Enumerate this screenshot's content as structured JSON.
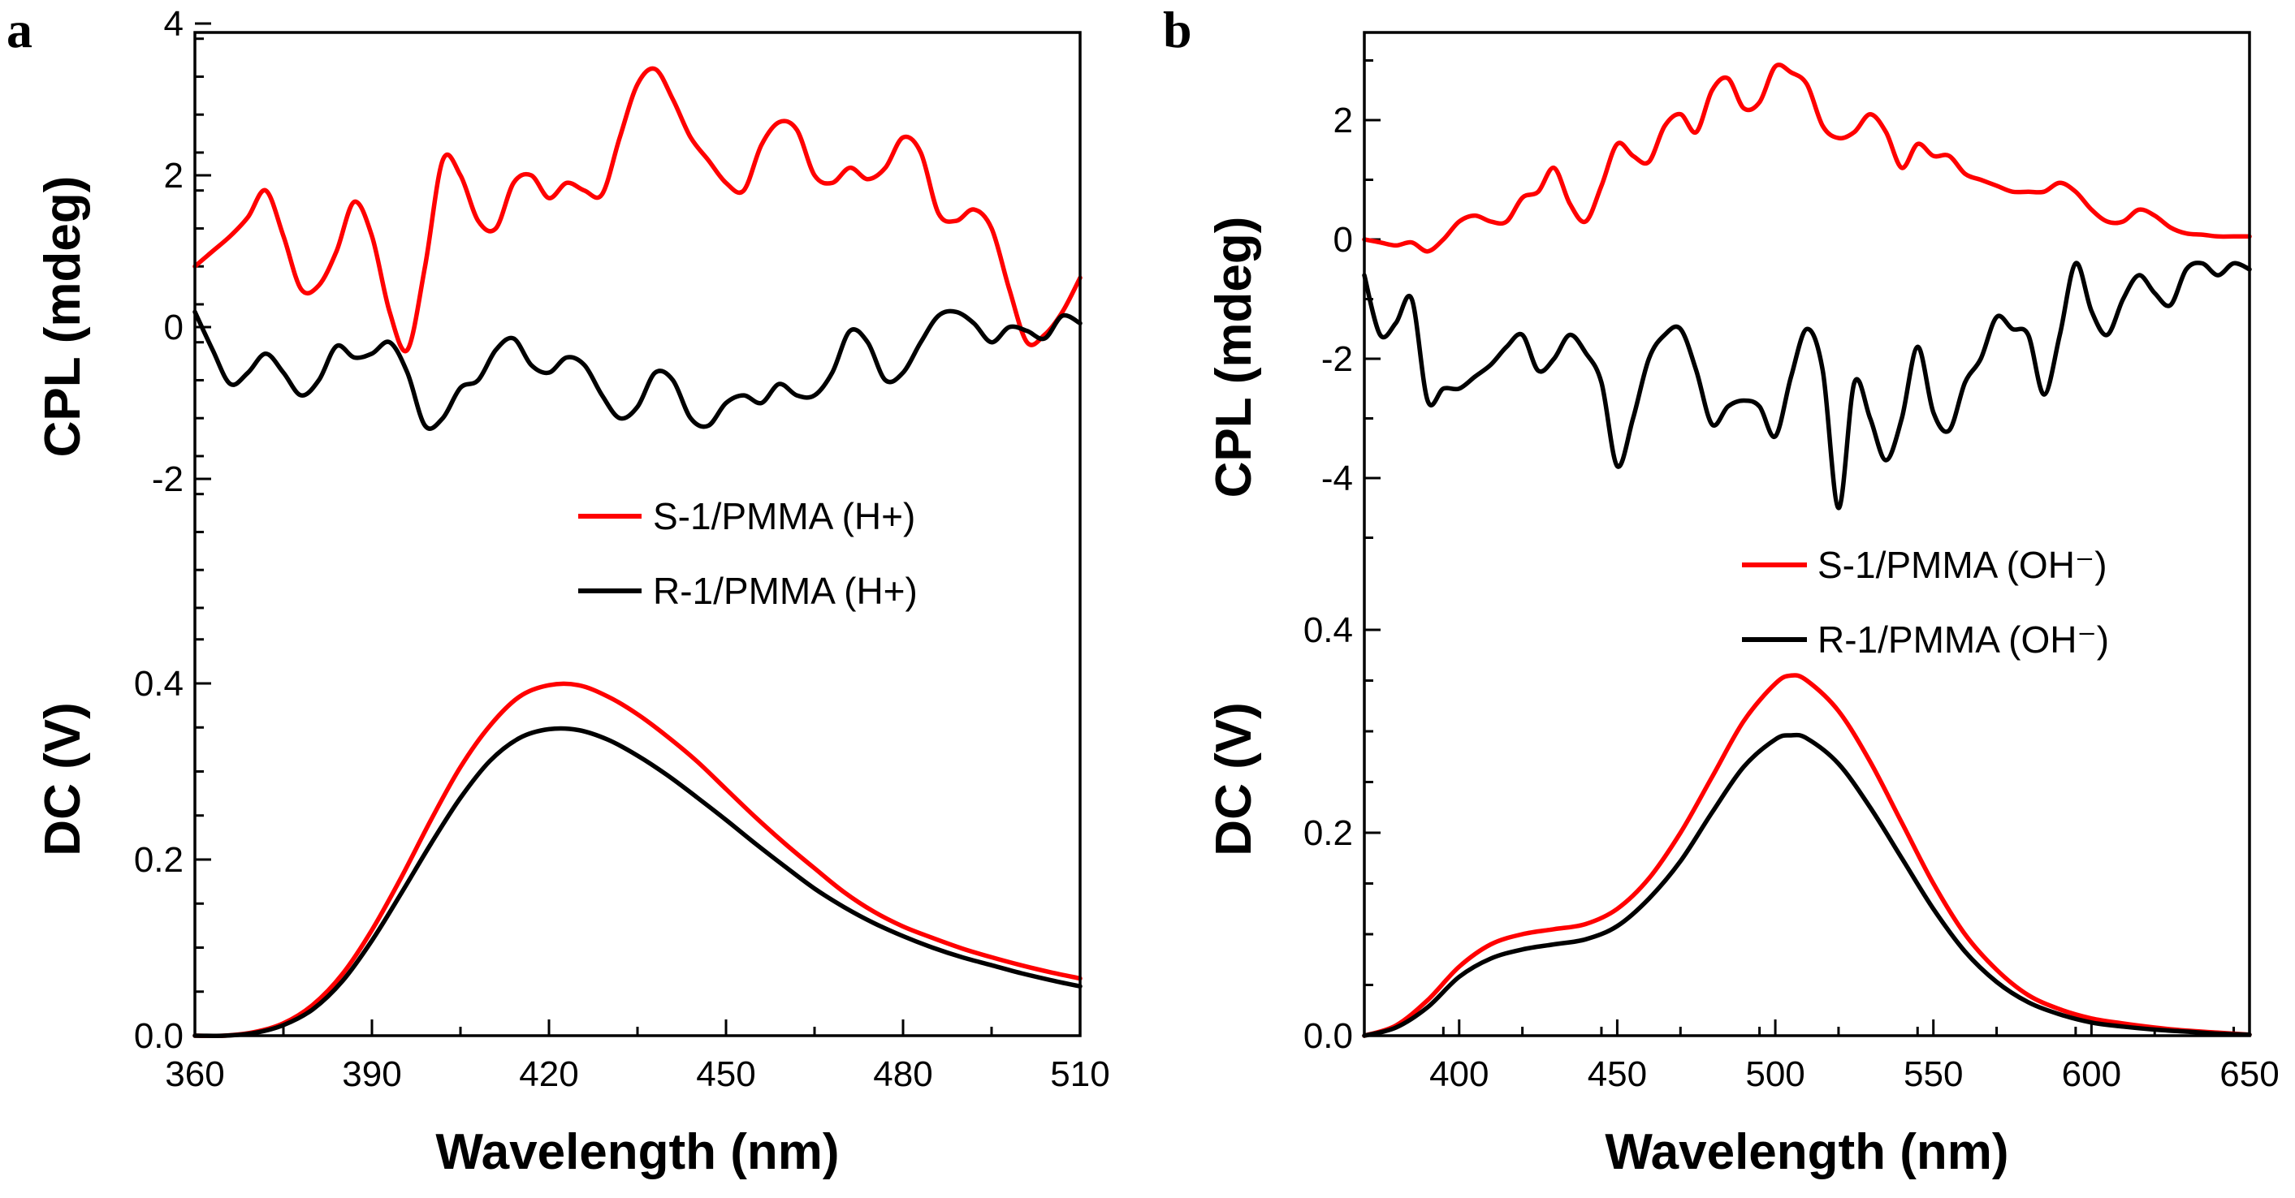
{
  "colors": {
    "s_series": "#ff0000",
    "r_series": "#000000",
    "axis": "#000000"
  },
  "chart_data": [
    {
      "type": "line",
      "panel_label": "a",
      "xlabel": "Wavelength (nm)",
      "ylabel_top": "CPL (mdeg)",
      "ylabel_bottom": "DC (V)",
      "xlim": [
        360,
        510
      ],
      "x_ticks": [
        "360",
        "390",
        "420",
        "450",
        "480",
        "510"
      ],
      "cpl_ticks": [
        "4",
        "2",
        "0",
        "-2"
      ],
      "dc_ticks": [
        "0.4",
        "0.2",
        "0.0"
      ],
      "legend": [
        "S-1/PMMA (H+)",
        "R-1/PMMA (H+)"
      ],
      "series": [
        {
          "name": "S-1/PMMA (H+) CPL",
          "color_key": "s_series",
          "x": [
            360,
            363,
            366,
            369,
            372,
            375,
            378,
            381,
            384,
            387,
            390,
            393,
            396,
            399,
            402,
            405,
            408,
            411,
            414,
            417,
            420,
            423,
            426,
            429,
            432,
            435,
            438,
            441,
            444,
            447,
            450,
            453,
            456,
            459,
            462,
            465,
            468,
            471,
            474,
            477,
            480,
            483,
            486,
            489,
            492,
            495,
            498,
            501,
            504,
            507,
            510
          ],
          "y": [
            0.8,
            1.0,
            1.2,
            1.45,
            1.8,
            1.2,
            0.5,
            0.55,
            1.0,
            1.65,
            1.2,
            0.2,
            -0.3,
            0.8,
            2.2,
            2.0,
            1.4,
            1.3,
            1.9,
            2.0,
            1.7,
            1.9,
            1.8,
            1.75,
            2.5,
            3.2,
            3.4,
            3.0,
            2.5,
            2.2,
            1.9,
            1.8,
            2.4,
            2.7,
            2.6,
            2.0,
            1.9,
            2.1,
            1.95,
            2.1,
            2.5,
            2.3,
            1.5,
            1.4,
            1.55,
            1.3,
            0.5,
            -0.2,
            -0.1,
            0.2,
            0.65
          ]
        },
        {
          "name": "R-1/PMMA (H+) CPL",
          "color_key": "r_series",
          "x": [
            360,
            363,
            366,
            369,
            372,
            375,
            378,
            381,
            384,
            387,
            390,
            393,
            396,
            399,
            402,
            405,
            408,
            411,
            414,
            417,
            420,
            423,
            426,
            429,
            432,
            435,
            438,
            441,
            444,
            447,
            450,
            453,
            456,
            459,
            462,
            465,
            468,
            471,
            474,
            477,
            480,
            483,
            486,
            489,
            492,
            495,
            498,
            501,
            504,
            507,
            510
          ],
          "y": [
            0.2,
            -0.3,
            -0.75,
            -0.6,
            -0.35,
            -0.6,
            -0.9,
            -0.7,
            -0.25,
            -0.4,
            -0.35,
            -0.2,
            -0.6,
            -1.3,
            -1.2,
            -0.8,
            -0.7,
            -0.3,
            -0.15,
            -0.5,
            -0.6,
            -0.4,
            -0.5,
            -0.9,
            -1.2,
            -1.05,
            -0.6,
            -0.7,
            -1.2,
            -1.3,
            -1.0,
            -0.9,
            -1.0,
            -0.75,
            -0.9,
            -0.9,
            -0.6,
            -0.05,
            -0.2,
            -0.7,
            -0.6,
            -0.2,
            0.15,
            0.2,
            0.05,
            -0.2,
            0.0,
            -0.05,
            -0.15,
            0.15,
            0.05
          ]
        },
        {
          "name": "S-1/PMMA (H+) DC",
          "color_key": "s_series",
          "x": [
            360,
            365,
            370,
            375,
            380,
            385,
            390,
            395,
            400,
            405,
            410,
            415,
            420,
            425,
            430,
            435,
            440,
            445,
            450,
            455,
            460,
            465,
            470,
            475,
            480,
            485,
            490,
            495,
            500,
            505,
            510
          ],
          "y": [
            0.0,
            0.0,
            0.004,
            0.014,
            0.035,
            0.07,
            0.12,
            0.18,
            0.245,
            0.305,
            0.352,
            0.385,
            0.398,
            0.398,
            0.385,
            0.365,
            0.34,
            0.312,
            0.28,
            0.248,
            0.218,
            0.19,
            0.163,
            0.141,
            0.124,
            0.111,
            0.099,
            0.089,
            0.08,
            0.072,
            0.065
          ]
        },
        {
          "name": "R-1/PMMA (H+) DC",
          "color_key": "r_series",
          "x": [
            360,
            365,
            370,
            375,
            380,
            385,
            390,
            395,
            400,
            405,
            410,
            415,
            420,
            425,
            430,
            435,
            440,
            445,
            450,
            455,
            460,
            465,
            470,
            475,
            480,
            485,
            490,
            495,
            500,
            505,
            510
          ],
          "y": [
            0.0,
            0.0,
            0.003,
            0.012,
            0.03,
            0.062,
            0.108,
            0.162,
            0.218,
            0.27,
            0.312,
            0.338,
            0.348,
            0.347,
            0.336,
            0.318,
            0.296,
            0.271,
            0.245,
            0.218,
            0.192,
            0.167,
            0.146,
            0.128,
            0.113,
            0.1,
            0.089,
            0.08,
            0.071,
            0.063,
            0.056
          ]
        }
      ]
    },
    {
      "type": "line",
      "panel_label": "b",
      "xlabel": "Wavelength (nm)",
      "ylabel_top": "CPL (mdeg)",
      "ylabel_bottom": "DC (V)",
      "xlim": [
        370,
        650
      ],
      "x_ticks": [
        "400",
        "450",
        "500",
        "550",
        "600",
        "650"
      ],
      "cpl_ticks": [
        "2",
        "0",
        "-2",
        "-4"
      ],
      "dc_ticks": [
        "0.4",
        "0.2",
        "0.0"
      ],
      "legend": [
        "S-1/PMMA (OH⁻)",
        "R-1/PMMA (OH⁻)"
      ],
      "series": [
        {
          "name": "S-1/PMMA (OH-) CPL",
          "color_key": "s_series",
          "x": [
            370,
            375,
            380,
            385,
            390,
            395,
            400,
            405,
            410,
            415,
            420,
            425,
            430,
            435,
            440,
            445,
            450,
            455,
            460,
            465,
            470,
            475,
            480,
            485,
            490,
            495,
            500,
            505,
            510,
            515,
            520,
            525,
            530,
            535,
            540,
            545,
            550,
            555,
            560,
            565,
            570,
            575,
            580,
            585,
            590,
            595,
            600,
            605,
            610,
            615,
            620,
            625,
            630,
            635,
            640,
            645,
            650
          ],
          "y": [
            0.0,
            -0.05,
            -0.1,
            -0.05,
            -0.2,
            0.0,
            0.3,
            0.4,
            0.3,
            0.3,
            0.7,
            0.8,
            1.2,
            0.6,
            0.3,
            0.9,
            1.6,
            1.4,
            1.3,
            1.9,
            2.1,
            1.8,
            2.5,
            2.7,
            2.2,
            2.3,
            2.9,
            2.8,
            2.6,
            1.9,
            1.7,
            1.8,
            2.1,
            1.8,
            1.2,
            1.6,
            1.4,
            1.4,
            1.1,
            1.0,
            0.9,
            0.8,
            0.8,
            0.8,
            0.95,
            0.8,
            0.5,
            0.3,
            0.3,
            0.5,
            0.4,
            0.2,
            0.1,
            0.08,
            0.05,
            0.05,
            0.05
          ]
        },
        {
          "name": "R-1/PMMA (OH-) CPL",
          "color_key": "r_series",
          "x": [
            370,
            375,
            380,
            385,
            390,
            395,
            400,
            405,
            410,
            415,
            420,
            425,
            430,
            435,
            440,
            445,
            450,
            455,
            460,
            465,
            470,
            475,
            480,
            485,
            490,
            495,
            500,
            505,
            510,
            515,
            520,
            525,
            530,
            535,
            540,
            545,
            550,
            555,
            560,
            565,
            570,
            575,
            580,
            585,
            590,
            595,
            600,
            605,
            610,
            615,
            620,
            625,
            630,
            635,
            640,
            645,
            650
          ],
          "y": [
            -0.6,
            -1.6,
            -1.4,
            -1.0,
            -2.7,
            -2.5,
            -2.5,
            -2.3,
            -2.1,
            -1.8,
            -1.6,
            -2.2,
            -2.0,
            -1.6,
            -1.9,
            -2.4,
            -3.8,
            -3.0,
            -2.0,
            -1.6,
            -1.5,
            -2.2,
            -3.1,
            -2.8,
            -2.7,
            -2.8,
            -3.3,
            -2.3,
            -1.5,
            -2.2,
            -4.5,
            -2.4,
            -3.0,
            -3.7,
            -3.0,
            -1.8,
            -2.9,
            -3.2,
            -2.4,
            -2.0,
            -1.3,
            -1.5,
            -1.6,
            -2.6,
            -1.6,
            -0.4,
            -1.2,
            -1.6,
            -1.0,
            -0.6,
            -0.9,
            -1.1,
            -0.5,
            -0.4,
            -0.6,
            -0.4,
            -0.5
          ]
        },
        {
          "name": "S-1/PMMA (OH-) DC",
          "color_key": "s_series",
          "x": [
            370,
            380,
            390,
            400,
            410,
            420,
            430,
            440,
            450,
            460,
            470,
            480,
            490,
            500,
            505,
            510,
            520,
            530,
            540,
            550,
            560,
            570,
            580,
            590,
            600,
            610,
            620,
            630,
            640,
            650
          ],
          "y": [
            0.0,
            0.01,
            0.035,
            0.068,
            0.09,
            0.1,
            0.105,
            0.11,
            0.125,
            0.155,
            0.2,
            0.255,
            0.31,
            0.347,
            0.355,
            0.35,
            0.32,
            0.27,
            0.21,
            0.15,
            0.1,
            0.065,
            0.04,
            0.026,
            0.017,
            0.012,
            0.008,
            0.005,
            0.003,
            0.001
          ]
        },
        {
          "name": "R-1/PMMA (OH-) DC",
          "color_key": "r_series",
          "x": [
            370,
            380,
            390,
            400,
            410,
            420,
            430,
            440,
            450,
            460,
            470,
            480,
            490,
            500,
            505,
            510,
            520,
            530,
            540,
            550,
            560,
            570,
            580,
            590,
            600,
            610,
            620,
            630,
            640,
            650
          ],
          "y": [
            0.0,
            0.008,
            0.028,
            0.058,
            0.076,
            0.085,
            0.09,
            0.095,
            0.108,
            0.135,
            0.172,
            0.22,
            0.265,
            0.292,
            0.296,
            0.293,
            0.268,
            0.225,
            0.175,
            0.125,
            0.083,
            0.053,
            0.033,
            0.021,
            0.013,
            0.009,
            0.006,
            0.004,
            0.002,
            0.001
          ]
        }
      ]
    }
  ]
}
